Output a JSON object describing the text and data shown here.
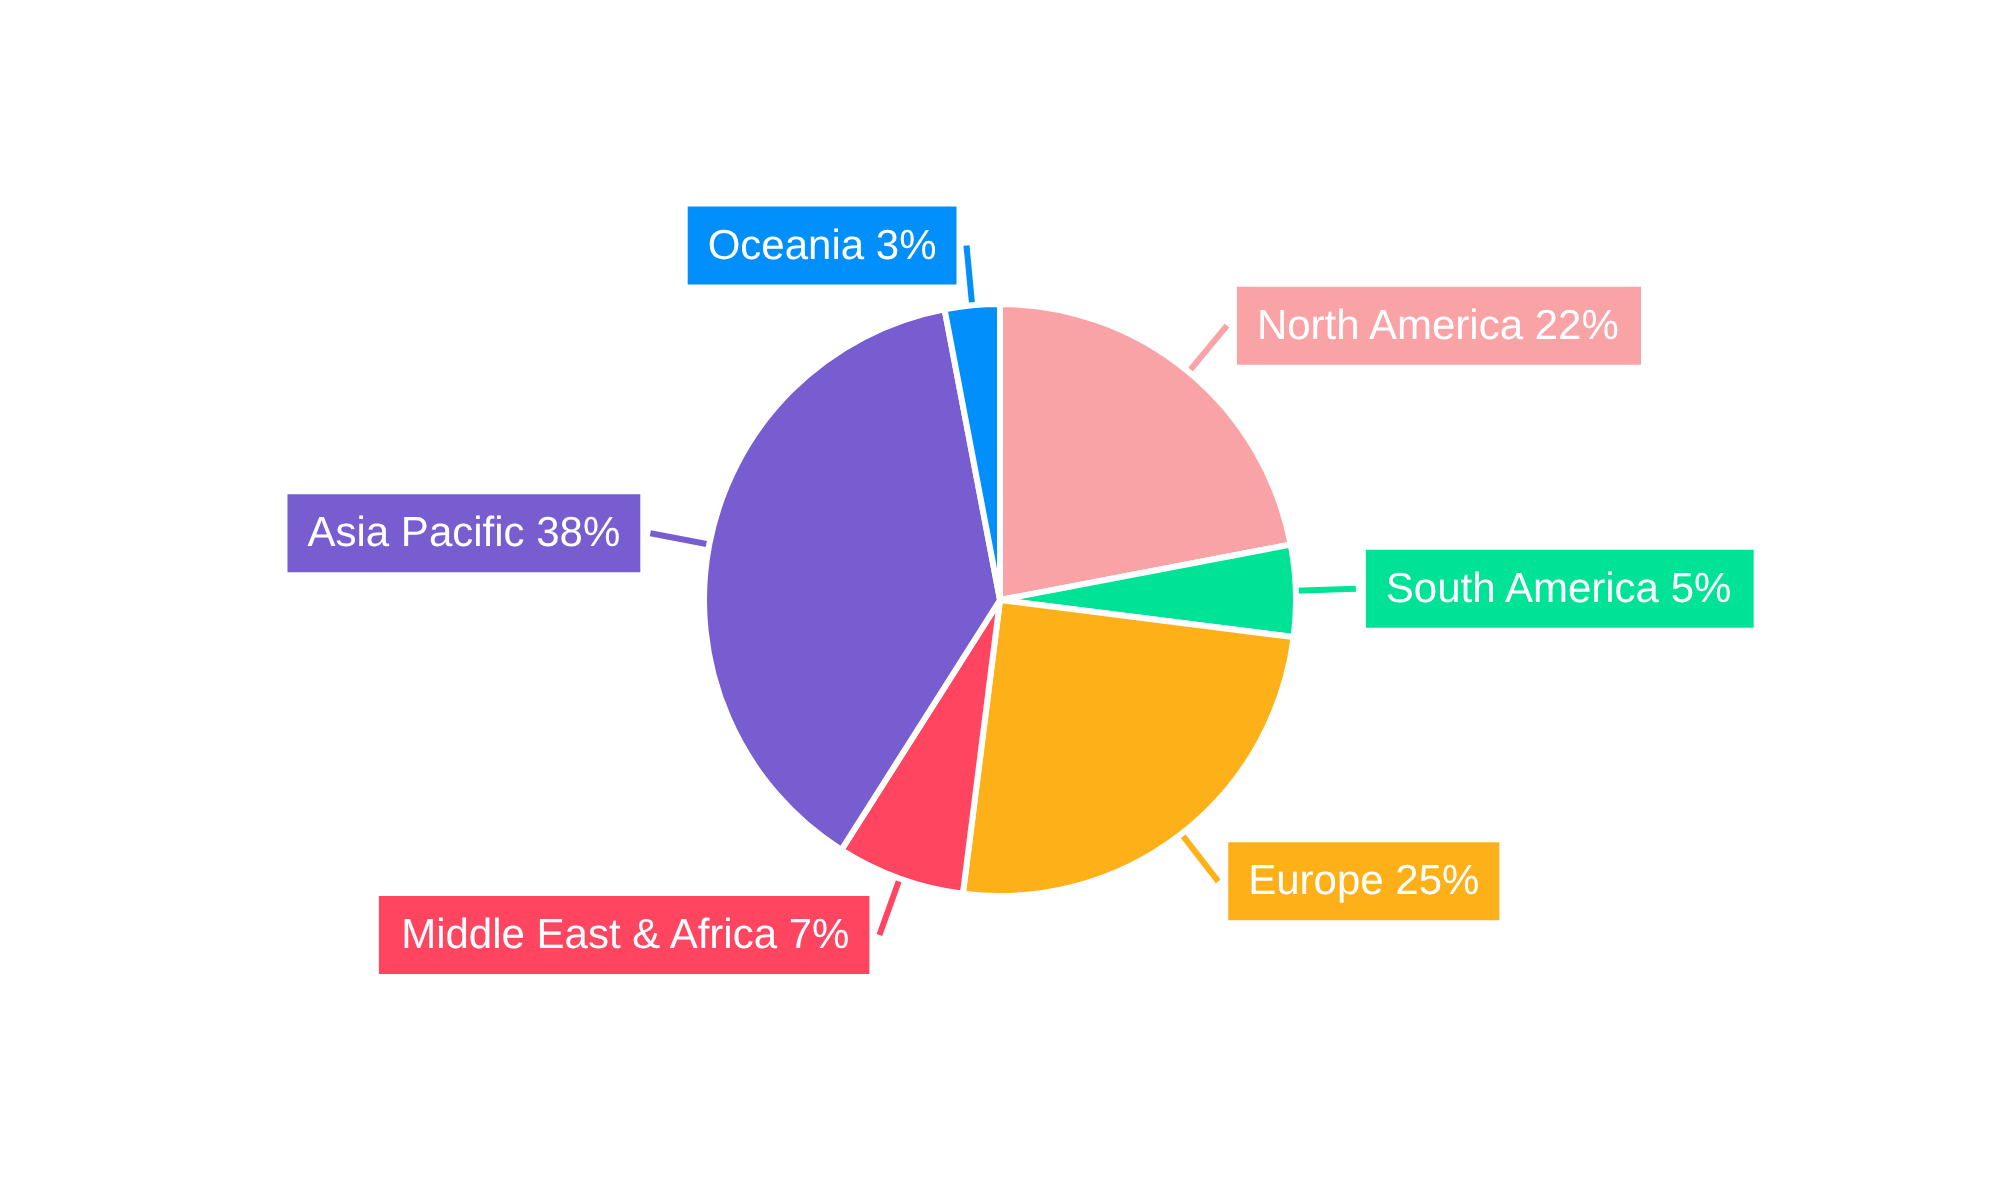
{
  "chart_data": {
    "type": "pie",
    "categories": [
      "North America",
      "South America",
      "Europe",
      "Middle East & Africa",
      "Asia Pacific",
      "Oceania"
    ],
    "values": [
      22,
      5,
      25,
      7,
      38,
      3
    ],
    "value_labels": [
      "22%",
      "5%",
      "25%",
      "7%",
      "38%",
      "3%"
    ],
    "colors": [
      "#f9a3a6",
      "#00e396",
      "#feb019",
      "#ff4560",
      "#775dd0",
      "#008ffb"
    ],
    "legend": false
  }
}
